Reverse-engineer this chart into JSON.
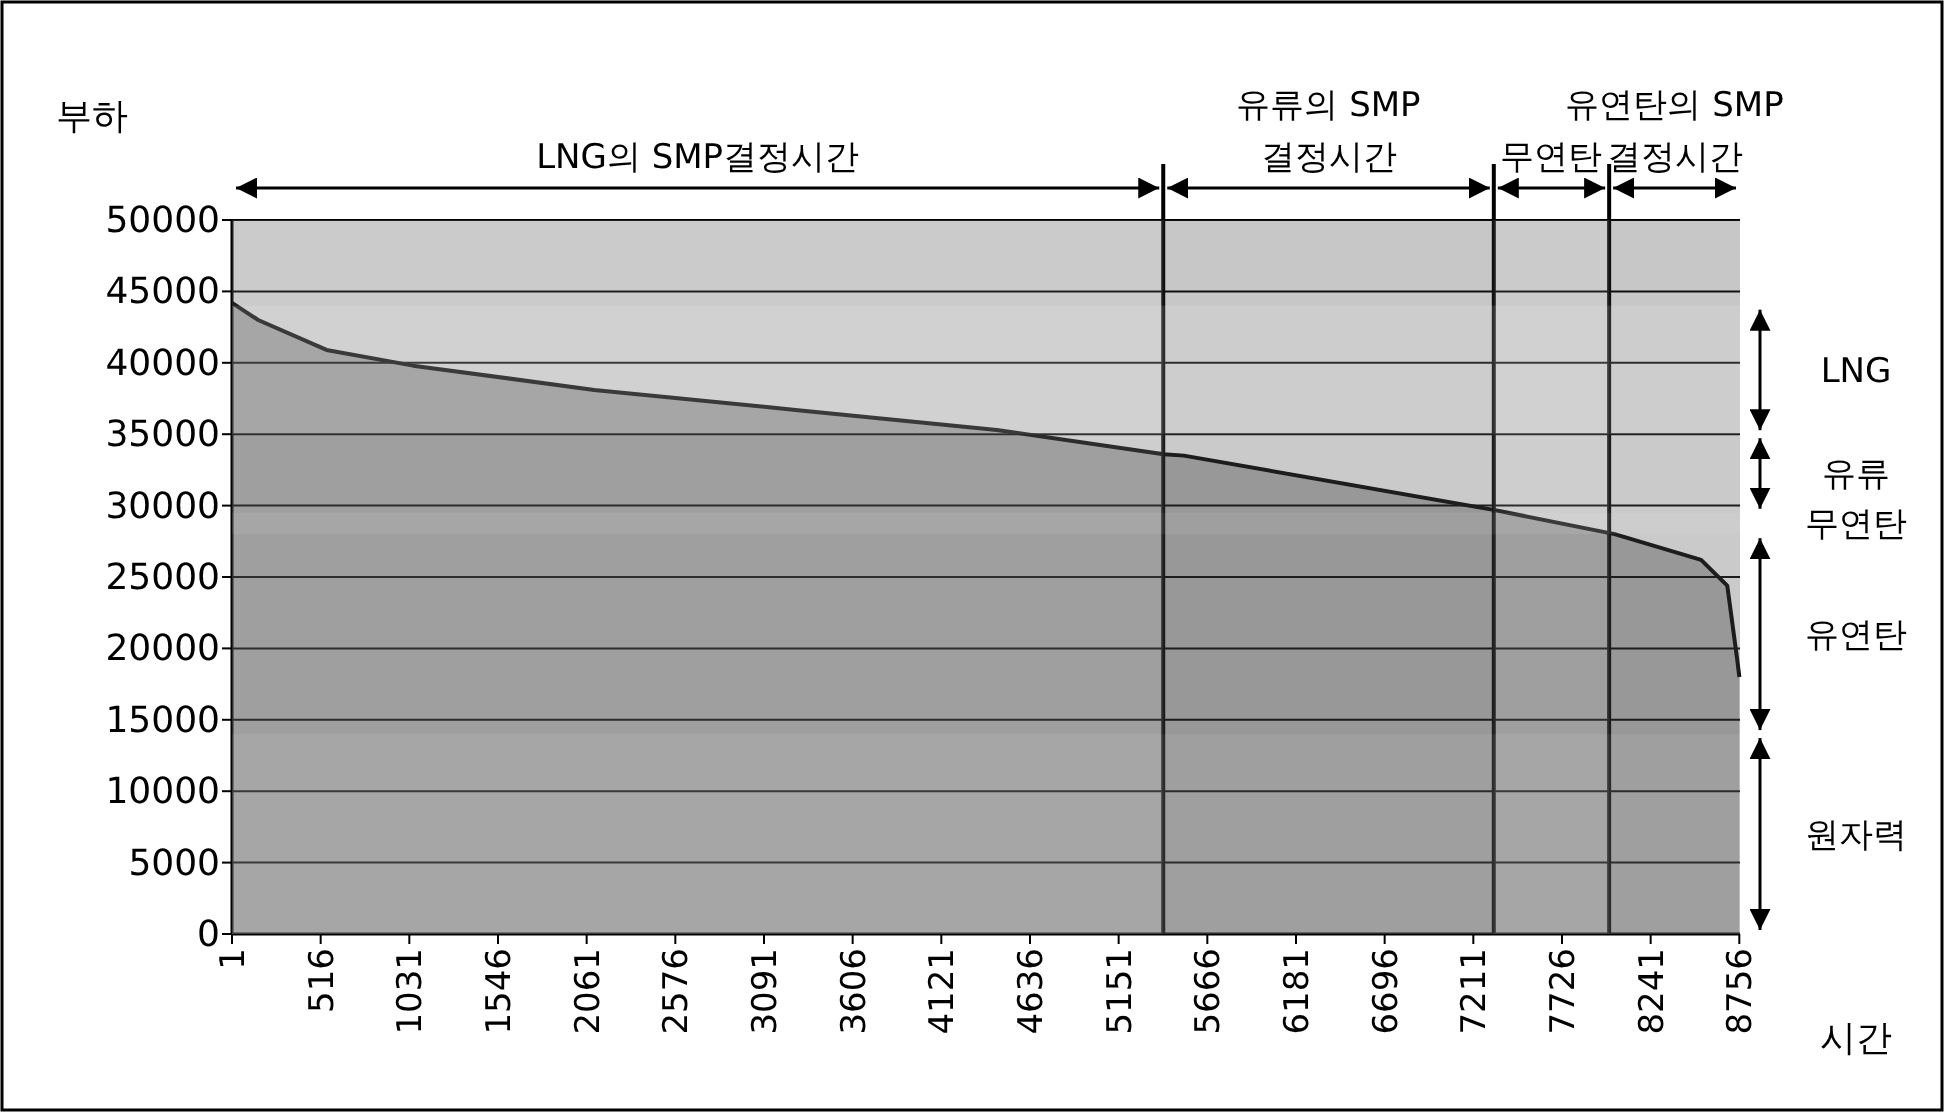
{
  "chart_data": {
    "type": "area",
    "xlabel": "시간",
    "ylabel": "부하",
    "x": [
      1,
      153,
      550,
      1053,
      2105,
      3274,
      4443,
      5413,
      5530,
      7330,
      8032,
      8534,
      8686,
      8744,
      8756
    ],
    "series": [
      {
        "color": "#8c8c8c",
        "values": [
          44200,
          43000,
          40900,
          39800,
          38100,
          36700,
          35300,
          33600,
          33500,
          29700,
          28000,
          26200,
          24400,
          19200,
          18000
        ]
      }
    ],
    "xlim": [
      1,
      8760
    ],
    "xticks": [
      1,
      516,
      1031,
      1546,
      2061,
      2576,
      3091,
      3606,
      4121,
      4636,
      5151,
      5666,
      6181,
      6696,
      7211,
      7726,
      8241,
      8756
    ],
    "ylim": [
      0,
      50000
    ],
    "yticks": [
      0,
      5000,
      10000,
      15000,
      20000,
      25000,
      30000,
      35000,
      40000,
      45000,
      50000
    ],
    "grid": "y",
    "ref_lines": [
      {
        "axis": "x",
        "value": 5410,
        "color": "#000000"
      },
      {
        "axis": "x",
        "value": 7330,
        "color": "#000000"
      },
      {
        "axis": "x",
        "value": 8000,
        "color": "#000000"
      }
    ],
    "bands": [
      {
        "axis": "x",
        "from": 1,
        "to": 5410,
        "label": "LNG의 SMP결정시간"
      },
      {
        "axis": "x",
        "from": 5410,
        "to": 7330,
        "label": "유류의 SMP 결정시간"
      },
      {
        "axis": "x",
        "from": 7330,
        "to": 8000,
        "label": "무연탄"
      },
      {
        "axis": "x",
        "from": 8000,
        "to": 8760,
        "label": "유연탄의 SMP 결정시간"
      },
      {
        "axis": "y",
        "from": 35000,
        "to": 44000,
        "label": "LNG"
      },
      {
        "axis": "y",
        "from": 29500,
        "to": 35000,
        "label": "유류"
      },
      {
        "axis": "y",
        "from": 28000,
        "to": 29500,
        "label": "무연탄"
      },
      {
        "axis": "y",
        "from": 14000,
        "to": 28000,
        "label": "유연탄"
      },
      {
        "axis": "y",
        "from": 0,
        "to": 14000,
        "label": "원자력"
      }
    ]
  }
}
